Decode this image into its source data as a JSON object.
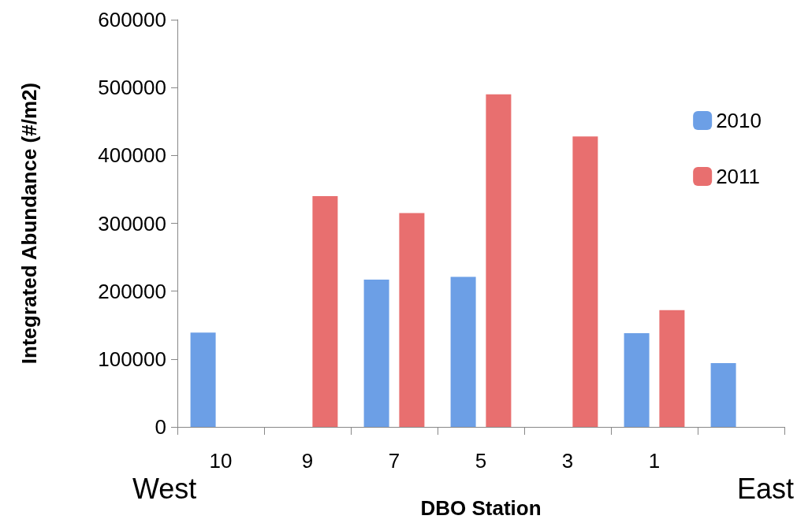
{
  "chart_data": {
    "type": "bar",
    "xlabel": "DBO Station",
    "ylabel": "Integrated Abundance (#/m2)",
    "categories": [
      "10",
      "9",
      "7",
      "5",
      "3",
      "1",
      null
    ],
    "series": [
      {
        "name": "2010",
        "color": "#6c9fe6",
        "values": [
          139000,
          null,
          217000,
          221000,
          null,
          138000,
          94000
        ]
      },
      {
        "name": "2011",
        "color": "#e86f6f",
        "values": [
          null,
          340000,
          315000,
          490000,
          428000,
          172000,
          null
        ]
      }
    ],
    "ylim": [
      0,
      600000
    ],
    "yticks": [
      0,
      100000,
      200000,
      300000,
      400000,
      500000,
      600000
    ],
    "grid": false,
    "legend": "right",
    "annotations": [
      "West",
      "East"
    ]
  }
}
